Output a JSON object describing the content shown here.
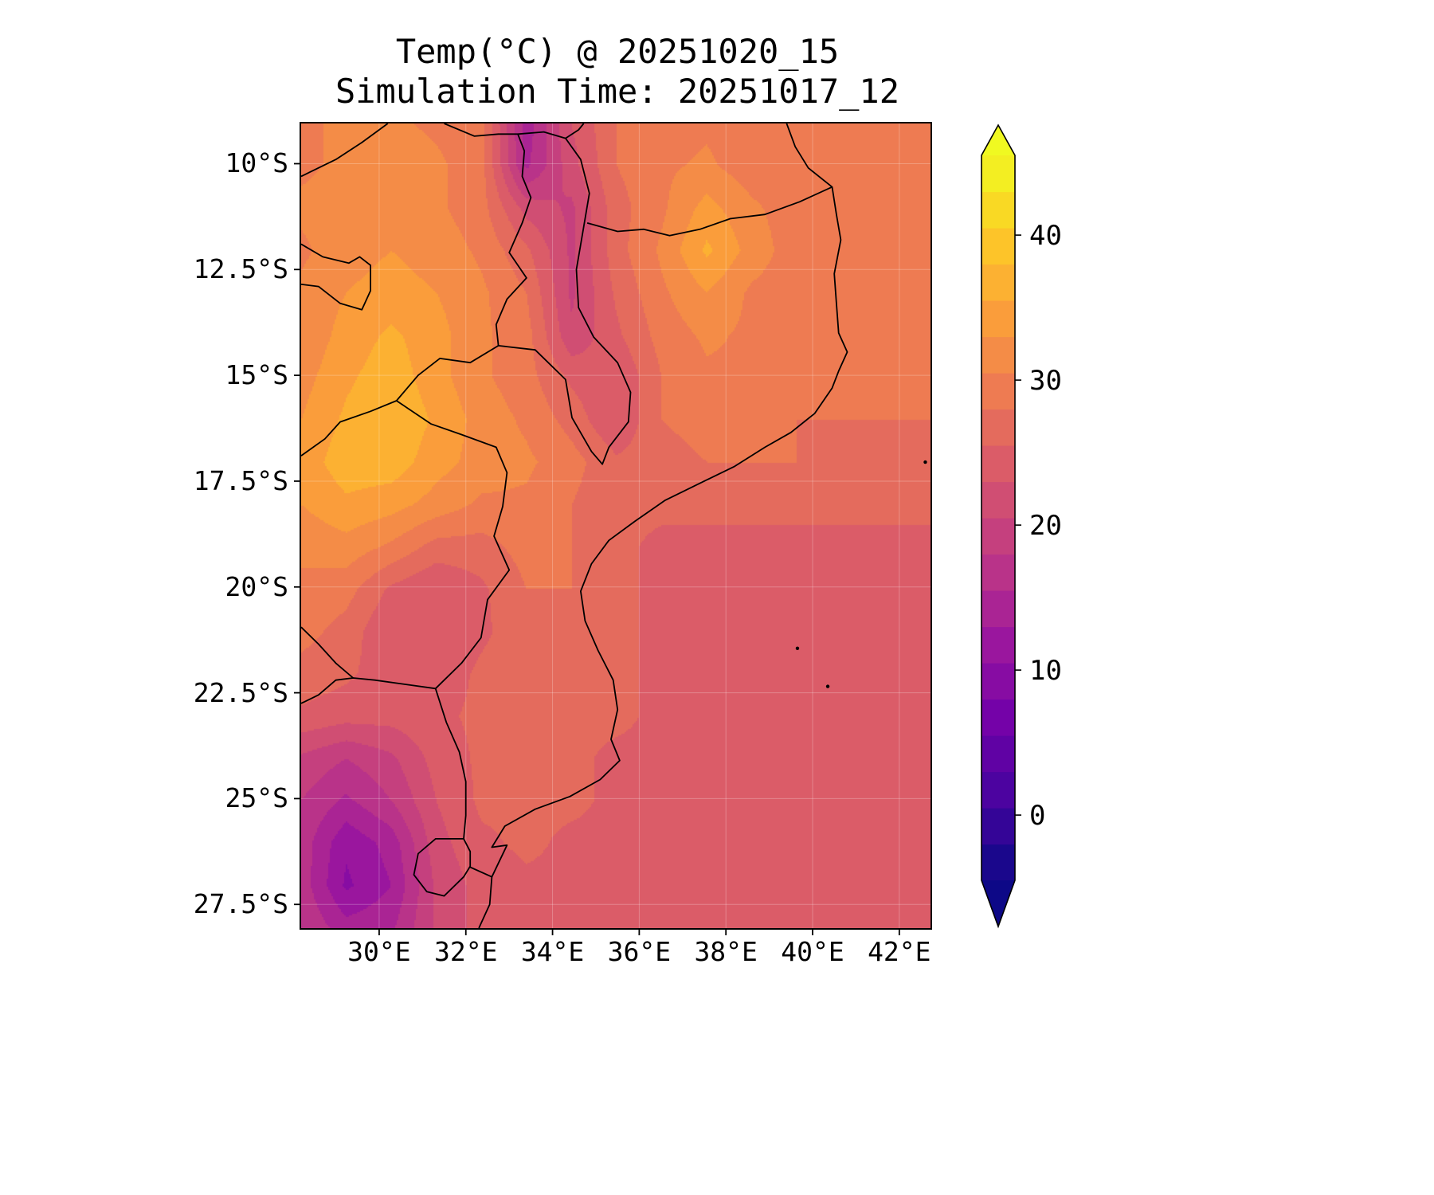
{
  "title": {
    "line1": "Temp(°C) @ 20251020_15",
    "line2": "Simulation Time: 20251017_12"
  },
  "axes": {
    "y_ticks": [
      {
        "label": "10°S",
        "lat": 10
      },
      {
        "label": "12.5°S",
        "lat": 12.5
      },
      {
        "label": "15°S",
        "lat": 15
      },
      {
        "label": "17.5°S",
        "lat": 17.5
      },
      {
        "label": "20°S",
        "lat": 20
      },
      {
        "label": "22.5°S",
        "lat": 22.5
      },
      {
        "label": "25°S",
        "lat": 25
      },
      {
        "label": "27.5°S",
        "lat": 27.5
      }
    ],
    "x_ticks": [
      {
        "label": "30°E",
        "lon": 30
      },
      {
        "label": "32°E",
        "lon": 32
      },
      {
        "label": "34°E",
        "lon": 34
      },
      {
        "label": "36°E",
        "lon": 36
      },
      {
        "label": "38°E",
        "lon": 38
      },
      {
        "label": "40°E",
        "lon": 40
      },
      {
        "label": "42°E",
        "lon": 42
      }
    ]
  },
  "colorbar": {
    "ticks": [
      {
        "label": "40",
        "value": 40
      },
      {
        "label": "30",
        "value": 30
      },
      {
        "label": "20",
        "value": 20
      },
      {
        "label": "10",
        "value": 10
      },
      {
        "label": "0",
        "value": 0
      }
    ],
    "vmin": -4.5,
    "vmax": 45.5,
    "n_bands": 20,
    "extend": "both",
    "colormap": "plasma",
    "stops": [
      [
        0.0,
        "#0d0887"
      ],
      [
        0.11,
        "#46039f"
      ],
      [
        0.22,
        "#7201a8"
      ],
      [
        0.33,
        "#9c179e"
      ],
      [
        0.44,
        "#bd3786"
      ],
      [
        0.56,
        "#d8576b"
      ],
      [
        0.67,
        "#ed7953"
      ],
      [
        0.78,
        "#fb9f3a"
      ],
      [
        0.89,
        "#fdca26"
      ],
      [
        1.0,
        "#f0f921"
      ]
    ]
  },
  "chart_data": {
    "type": "heatmap",
    "title": "Temp(°C) @ 20251020_15",
    "subtitle": "Simulation Time: 20251017_12",
    "units": "°C",
    "colormap": "plasma",
    "value_range": [
      -4.5,
      45.5
    ],
    "band_step": 2.5,
    "colorbar_ticks": [
      0,
      10,
      20,
      30,
      40
    ],
    "lon_range": [
      28.2,
      42.72
    ],
    "lat_range": [
      9.05,
      28.06
    ],
    "x_tick_values": [
      30,
      32,
      34,
      36,
      38,
      40,
      42
    ],
    "y_tick_values": [
      10,
      12.5,
      15,
      17.5,
      20,
      22.5,
      25,
      27.5
    ],
    "lon": [
      28.2,
      29.24,
      30.27,
      31.31,
      32.35,
      33.38,
      34.42,
      35.46,
      36.49,
      37.53,
      38.57,
      39.6,
      40.64,
      41.68,
      42.72
    ],
    "lat": [
      9.05,
      10.05,
      11.05,
      12.05,
      13.05,
      14.05,
      15.05,
      16.05,
      17.05,
      18.05,
      19.05,
      20.05,
      21.05,
      22.05,
      23.05,
      24.05,
      25.05,
      26.05,
      27.05,
      28.05
    ],
    "values": [
      [
        30,
        31,
        31,
        30,
        29,
        14,
        23,
        28,
        29,
        30,
        29,
        29,
        29,
        29,
        29
      ],
      [
        30,
        31,
        32,
        31,
        29,
        15,
        22,
        28,
        30,
        31,
        29,
        29,
        29,
        29,
        29
      ],
      [
        31,
        32,
        32,
        31,
        29,
        22,
        20,
        27,
        30,
        34,
        31,
        29,
        29,
        29,
        29
      ],
      [
        30,
        32,
        33,
        32,
        30,
        26,
        20,
        27,
        31,
        36,
        32,
        29,
        29,
        29,
        29
      ],
      [
        31,
        33,
        34,
        33,
        31,
        28,
        20,
        26,
        30,
        33,
        30,
        29,
        29,
        29,
        29
      ],
      [
        31,
        34,
        36,
        34,
        31,
        29,
        21,
        25,
        29,
        31,
        30,
        29,
        29,
        29,
        29
      ],
      [
        32,
        35,
        37,
        34,
        31,
        29,
        25,
        23,
        28,
        30,
        30,
        29,
        28,
        28,
        28
      ],
      [
        33,
        36,
        38,
        35,
        32,
        30,
        27,
        23,
        28,
        29,
        29,
        28,
        28,
        28,
        28
      ],
      [
        34,
        37,
        37,
        34,
        32,
        31,
        29,
        26,
        27,
        28,
        28,
        28,
        27,
        27,
        27
      ],
      [
        33,
        35,
        34,
        32,
        30,
        30,
        28,
        26,
        26,
        26,
        26,
        26,
        26,
        26,
        26
      ],
      [
        31,
        32,
        30,
        27,
        27,
        29,
        28,
        26,
        25,
        25,
        25,
        25,
        25,
        25,
        25
      ],
      [
        30,
        29,
        25,
        23,
        25,
        28,
        28,
        26,
        25,
        25,
        25,
        25,
        25,
        25,
        25
      ],
      [
        29,
        27,
        23,
        23,
        25,
        27,
        27,
        26,
        25,
        25,
        25,
        25,
        25,
        25,
        25
      ],
      [
        27,
        26,
        24,
        24,
        26,
        27,
        27,
        26,
        25,
        25,
        25,
        25,
        25,
        25,
        25
      ],
      [
        25,
        24,
        24,
        25,
        26,
        27,
        26,
        26,
        25,
        25,
        25,
        25,
        25,
        25,
        25
      ],
      [
        20,
        18,
        20,
        24,
        26,
        26,
        26,
        25,
        25,
        25,
        25,
        25,
        25,
        25,
        25
      ],
      [
        18,
        15,
        18,
        23,
        26,
        26,
        26,
        25,
        25,
        25,
        25,
        25,
        25,
        25,
        25
      ],
      [
        17,
        11,
        14,
        22,
        25,
        26,
        25,
        25,
        25,
        25,
        25,
        25,
        25,
        25,
        25
      ],
      [
        17,
        10,
        13,
        21,
        24,
        25,
        25,
        25,
        25,
        25,
        25,
        25,
        25,
        25,
        25
      ],
      [
        18,
        14,
        15,
        21,
        24,
        25,
        25,
        25,
        25,
        25,
        25,
        25,
        25,
        25,
        25
      ]
    ]
  },
  "map": {
    "border_color": "#000000",
    "borders": [
      [
        [
          39.4,
          9.05
        ],
        [
          39.6,
          9.6
        ],
        [
          39.9,
          10.1
        ],
        [
          40.45,
          10.55
        ],
        [
          40.55,
          11.2
        ],
        [
          40.65,
          11.8
        ],
        [
          40.5,
          12.6
        ],
        [
          40.55,
          13.3
        ],
        [
          40.6,
          14.0
        ],
        [
          40.8,
          14.45
        ],
        [
          40.6,
          14.9
        ],
        [
          40.45,
          15.3
        ],
        [
          40.05,
          15.9
        ],
        [
          39.5,
          16.35
        ],
        [
          38.9,
          16.7
        ],
        [
          38.2,
          17.15
        ],
        [
          37.4,
          17.55
        ],
        [
          36.6,
          17.95
        ],
        [
          35.9,
          18.45
        ],
        [
          35.3,
          18.9
        ],
        [
          34.9,
          19.45
        ],
        [
          34.65,
          20.1
        ],
        [
          34.75,
          20.8
        ],
        [
          35.05,
          21.5
        ],
        [
          35.4,
          22.2
        ],
        [
          35.5,
          22.9
        ],
        [
          35.35,
          23.6
        ],
        [
          35.55,
          24.1
        ],
        [
          35.1,
          24.55
        ],
        [
          34.4,
          24.95
        ],
        [
          33.6,
          25.25
        ],
        [
          32.9,
          25.65
        ],
        [
          32.6,
          26.15
        ],
        [
          32.95,
          26.1
        ],
        [
          32.6,
          26.85
        ],
        [
          32.55,
          27.5
        ],
        [
          32.3,
          28.06
        ]
      ],
      [
        [
          40.45,
          10.55
        ],
        [
          39.7,
          10.9
        ],
        [
          38.9,
          11.2
        ],
        [
          38.1,
          11.3
        ],
        [
          37.4,
          11.55
        ],
        [
          36.7,
          11.7
        ],
        [
          36.1,
          11.55
        ],
        [
          35.5,
          11.6
        ],
        [
          34.8,
          11.4
        ]
      ],
      [
        [
          33.2,
          9.3
        ],
        [
          33.35,
          9.7
        ],
        [
          33.3,
          10.3
        ],
        [
          33.5,
          10.8
        ],
        [
          33.3,
          11.4
        ],
        [
          33.0,
          12.1
        ],
        [
          33.4,
          12.7
        ],
        [
          32.95,
          13.2
        ],
        [
          32.7,
          13.8
        ],
        [
          32.75,
          14.3
        ],
        [
          33.6,
          14.4
        ],
        [
          34.3,
          15.1
        ],
        [
          34.45,
          16.0
        ],
        [
          34.9,
          16.8
        ],
        [
          35.15,
          17.1
        ],
        [
          35.3,
          16.7
        ],
        [
          35.75,
          16.1
        ],
        [
          35.8,
          15.4
        ],
        [
          35.5,
          14.7
        ],
        [
          34.95,
          14.1
        ],
        [
          34.6,
          13.4
        ],
        [
          34.55,
          12.5
        ],
        [
          34.7,
          11.6
        ],
        [
          34.85,
          10.7
        ],
        [
          34.65,
          9.9
        ],
        [
          34.3,
          9.4
        ],
        [
          33.8,
          9.25
        ],
        [
          33.2,
          9.3
        ]
      ],
      [
        [
          31.5,
          9.05
        ],
        [
          32.2,
          9.35
        ],
        [
          32.75,
          9.3
        ],
        [
          33.2,
          9.3
        ]
      ],
      [
        [
          34.3,
          9.4
        ],
        [
          34.6,
          9.2
        ],
        [
          34.72,
          9.05
        ]
      ],
      [
        [
          32.75,
          14.3
        ],
        [
          32.1,
          14.7
        ],
        [
          31.4,
          14.6
        ],
        [
          30.9,
          15.0
        ],
        [
          30.4,
          15.6
        ],
        [
          29.8,
          15.85
        ],
        [
          29.1,
          16.1
        ],
        [
          28.75,
          16.5
        ],
        [
          28.2,
          16.9
        ]
      ],
      [
        [
          30.4,
          15.6
        ],
        [
          31.2,
          16.15
        ],
        [
          31.9,
          16.4
        ],
        [
          32.7,
          16.7
        ],
        [
          32.95,
          17.3
        ],
        [
          32.85,
          18.1
        ],
        [
          32.65,
          18.8
        ],
        [
          33.0,
          19.6
        ],
        [
          32.5,
          20.3
        ],
        [
          32.35,
          21.2
        ],
        [
          31.9,
          21.8
        ],
        [
          31.3,
          22.4
        ]
      ],
      [
        [
          31.3,
          22.4
        ],
        [
          30.6,
          22.3
        ],
        [
          29.9,
          22.2
        ],
        [
          29.4,
          22.15
        ],
        [
          29.0,
          22.2
        ],
        [
          28.6,
          22.55
        ],
        [
          28.2,
          22.75
        ]
      ],
      [
        [
          28.2,
          20.95
        ],
        [
          28.6,
          21.35
        ],
        [
          29.0,
          21.8
        ],
        [
          29.4,
          22.15
        ]
      ],
      [
        [
          31.3,
          22.4
        ],
        [
          31.55,
          23.2
        ],
        [
          31.85,
          23.9
        ],
        [
          32.0,
          24.6
        ],
        [
          32.0,
          25.4
        ],
        [
          31.95,
          25.95
        ]
      ],
      [
        [
          31.95,
          25.95
        ],
        [
          32.1,
          26.25
        ],
        [
          32.1,
          26.6
        ],
        [
          31.95,
          26.85
        ],
        [
          31.5,
          27.3
        ],
        [
          31.1,
          27.2
        ],
        [
          30.8,
          26.8
        ],
        [
          30.9,
          26.3
        ],
        [
          31.3,
          25.95
        ],
        [
          31.95,
          25.95
        ]
      ],
      [
        [
          32.1,
          26.62
        ],
        [
          32.6,
          26.85
        ]
      ],
      [
        [
          28.2,
          11.9
        ],
        [
          28.7,
          12.2
        ],
        [
          29.3,
          12.35
        ],
        [
          29.55,
          12.2
        ],
        [
          29.8,
          12.4
        ],
        [
          29.8,
          13.0
        ],
        [
          29.6,
          13.45
        ],
        [
          29.1,
          13.3
        ],
        [
          28.6,
          12.9
        ],
        [
          28.2,
          12.85
        ]
      ],
      [
        [
          30.2,
          9.05
        ],
        [
          29.6,
          9.5
        ],
        [
          29.0,
          9.9
        ],
        [
          28.4,
          10.2
        ],
        [
          28.2,
          10.3
        ]
      ]
    ],
    "islands": [
      [
        39.65,
        21.45
      ],
      [
        40.35,
        22.35
      ],
      [
        42.6,
        17.05
      ]
    ]
  }
}
